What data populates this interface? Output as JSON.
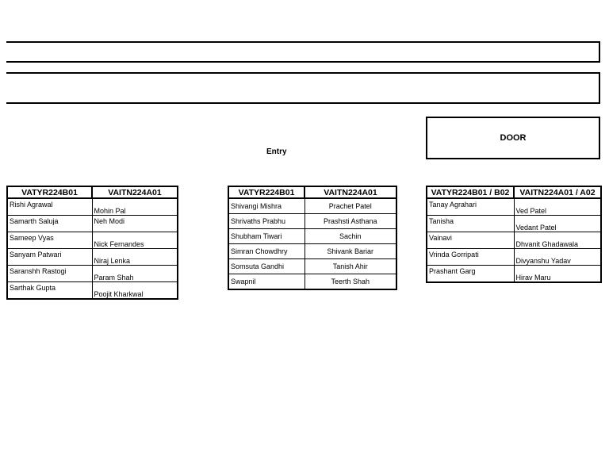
{
  "door_label": "DOOR",
  "entry_label": "Entry",
  "tables": [
    {
      "headers": [
        "VATYR224B01",
        "VAITN224A01"
      ],
      "rows": [
        [
          "Rishi Agrawal",
          "Mohin Pal"
        ],
        [
          "Samarth   Saluja",
          "Neh Modi"
        ],
        [
          "Sameep Vyas",
          "Nick Fernandes"
        ],
        [
          "Sanyam  Patwari",
          "Niraj Lenka"
        ],
        [
          "Saranshh Rastogi",
          "Param Shah"
        ],
        [
          "Sarthak  Gupta",
          "Poojit Kharkwal"
        ]
      ]
    },
    {
      "headers": [
        "VATYR224B01",
        "VAITN224A01"
      ],
      "rows": [
        [
          "Shivangi Mishra",
          "Prachet Patel"
        ],
        [
          "Shrivaths Prabhu",
          "Prashsti Asthana"
        ],
        [
          "Shubham  Tiwari",
          "Sachin"
        ],
        [
          "Simran Chowdhry",
          "Shivank Bariar"
        ],
        [
          "Somsuta  Gandhi",
          "Tanish Ahir"
        ],
        [
          "Swapnil",
          "Teerth Shah"
        ]
      ]
    },
    {
      "headers": [
        "VATYR224B01 / B02",
        "VAITN224A01 / A02"
      ],
      "rows": [
        [
          "Tanay  Agrahari",
          "Ved Patel"
        ],
        [
          "Tanisha",
          "Vedant Patel"
        ],
        [
          "Vainavi",
          "Dhvanit Ghadawala"
        ],
        [
          "Vrinda  Gorripati",
          "Divyanshu Yadav"
        ],
        [
          "Prashant  Garg",
          "Hirav Maru"
        ]
      ]
    }
  ]
}
